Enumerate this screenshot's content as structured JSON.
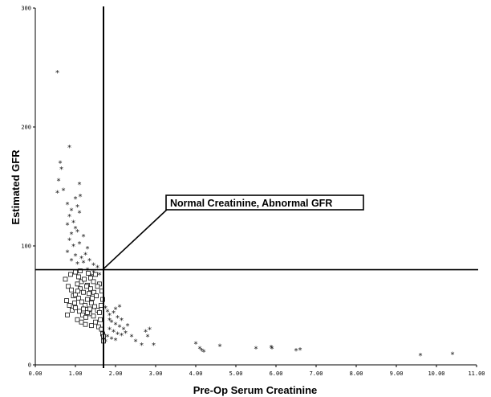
{
  "chart_data": {
    "type": "scatter",
    "title": "",
    "xlabel": "Pre-Op Serum Creatinine",
    "ylabel": "Estimated GFR",
    "xlim": [
      0,
      11
    ],
    "ylim": [
      0,
      300
    ],
    "x_ticks": [
      "0.00",
      "1.00",
      "2.00",
      "3.00",
      "4.00",
      "5.00",
      "6.00",
      "7.00",
      "8.00",
      "9.00",
      "10.00",
      "11.00"
    ],
    "y_ticks": [
      "0",
      "100",
      "200",
      "300"
    ],
    "reference_lines": [
      {
        "axis": "x",
        "value": 1.7
      },
      {
        "axis": "y",
        "value": 80
      }
    ],
    "annotation": {
      "text": "Normal Creatinine, Abnormal GFR",
      "points_to": [
        1.7,
        80
      ]
    },
    "series": [
      {
        "marker": "asterisk",
        "points": [
          [
            0.55,
            246
          ],
          [
            0.85,
            183
          ],
          [
            0.62,
            170
          ],
          [
            0.65,
            165
          ],
          [
            0.58,
            155
          ],
          [
            0.55,
            145
          ],
          [
            0.7,
            147
          ],
          [
            1.1,
            152
          ],
          [
            1.12,
            142
          ],
          [
            1.0,
            140
          ],
          [
            0.8,
            135
          ],
          [
            0.9,
            130
          ],
          [
            1.05,
            133
          ],
          [
            0.85,
            125
          ],
          [
            0.95,
            120
          ],
          [
            1.1,
            128
          ],
          [
            0.8,
            118
          ],
          [
            1.0,
            115
          ],
          [
            0.9,
            110
          ],
          [
            1.05,
            112
          ],
          [
            1.2,
            108
          ],
          [
            0.85,
            105
          ],
          [
            0.95,
            100
          ],
          [
            1.1,
            102
          ],
          [
            1.3,
            98
          ],
          [
            0.8,
            95
          ],
          [
            1.0,
            92
          ],
          [
            1.15,
            90
          ],
          [
            1.25,
            93
          ],
          [
            0.9,
            88
          ],
          [
            1.05,
            85
          ],
          [
            1.2,
            86
          ],
          [
            1.35,
            88
          ],
          [
            1.45,
            84
          ],
          [
            1.55,
            82
          ],
          [
            1.3,
            80
          ],
          [
            1.45,
            78
          ],
          [
            1.6,
            76
          ],
          [
            1.4,
            75
          ],
          [
            1.75,
            48
          ],
          [
            1.8,
            45
          ],
          [
            1.85,
            42
          ],
          [
            1.95,
            44
          ],
          [
            2.05,
            40
          ],
          [
            2.15,
            38
          ],
          [
            1.9,
            36
          ],
          [
            2.0,
            34
          ],
          [
            2.1,
            32
          ],
          [
            2.2,
            30
          ],
          [
            2.3,
            33
          ],
          [
            1.85,
            30
          ],
          [
            1.95,
            28
          ],
          [
            2.05,
            26
          ],
          [
            2.15,
            25
          ],
          [
            1.8,
            24
          ],
          [
            1.9,
            22
          ],
          [
            2.0,
            21
          ],
          [
            1.75,
            20
          ],
          [
            2.25,
            27
          ],
          [
            2.4,
            24
          ],
          [
            1.85,
            38
          ],
          [
            2.0,
            47
          ],
          [
            2.1,
            49
          ],
          [
            2.5,
            20
          ],
          [
            2.65,
            17
          ],
          [
            2.75,
            28
          ],
          [
            2.85,
            30
          ],
          [
            2.8,
            24
          ],
          [
            2.95,
            17
          ],
          [
            4.0,
            18
          ],
          [
            4.1,
            14
          ],
          [
            4.15,
            12
          ],
          [
            4.2,
            11
          ],
          [
            4.6,
            16
          ],
          [
            5.5,
            14
          ],
          [
            5.9,
            14
          ],
          [
            5.88,
            15
          ],
          [
            6.5,
            12
          ],
          [
            6.6,
            13
          ],
          [
            9.6,
            8
          ],
          [
            10.4,
            9
          ]
        ]
      },
      {
        "marker": "open-square",
        "points": [
          [
            0.75,
            72
          ],
          [
            0.82,
            66
          ],
          [
            0.9,
            63
          ],
          [
            0.95,
            58
          ],
          [
            0.78,
            54
          ],
          [
            0.85,
            50
          ],
          [
            0.92,
            46
          ],
          [
            0.8,
            42
          ],
          [
            1.0,
            78
          ],
          [
            1.08,
            74
          ],
          [
            1.15,
            70
          ],
          [
            1.05,
            68
          ],
          [
            1.12,
            64
          ],
          [
            1.2,
            61
          ],
          [
            1.0,
            59
          ],
          [
            1.08,
            56
          ],
          [
            1.16,
            53
          ],
          [
            1.24,
            50
          ],
          [
            1.0,
            48
          ],
          [
            1.1,
            45
          ],
          [
            1.18,
            42
          ],
          [
            1.26,
            40
          ],
          [
            1.05,
            38
          ],
          [
            1.15,
            36
          ],
          [
            1.25,
            34
          ],
          [
            1.32,
            77
          ],
          [
            1.38,
            73
          ],
          [
            1.45,
            70
          ],
          [
            1.3,
            67
          ],
          [
            1.38,
            64
          ],
          [
            1.46,
            61
          ],
          [
            1.52,
            58
          ],
          [
            1.3,
            55
          ],
          [
            1.4,
            52
          ],
          [
            1.48,
            49
          ],
          [
            1.55,
            46
          ],
          [
            1.35,
            43
          ],
          [
            1.45,
            41
          ],
          [
            1.6,
            44
          ],
          [
            1.62,
            38
          ],
          [
            1.5,
            36
          ],
          [
            1.4,
            33
          ],
          [
            1.58,
            32
          ],
          [
            1.65,
            30
          ],
          [
            1.68,
            26
          ],
          [
            1.7,
            24
          ],
          [
            1.7,
            20
          ],
          [
            1.22,
            72
          ],
          [
            1.28,
            66
          ],
          [
            0.98,
            52
          ],
          [
            1.34,
            60
          ],
          [
            1.6,
            68
          ],
          [
            1.66,
            62
          ],
          [
            1.68,
            55
          ],
          [
            1.64,
            50
          ],
          [
            1.2,
            47
          ],
          [
            1.42,
            56
          ],
          [
            1.3,
            44
          ],
          [
            1.55,
            66
          ],
          [
            0.88,
            76
          ],
          [
            1.12,
            79
          ],
          [
            1.5,
            76
          ],
          [
            1.06,
            62
          ],
          [
            1.36,
            47
          ]
        ]
      }
    ]
  }
}
